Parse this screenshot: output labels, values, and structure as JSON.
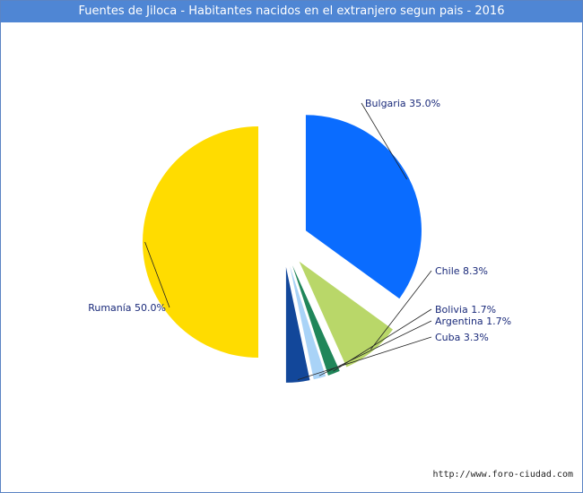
{
  "header": {
    "title": "Fuentes de Jiloca - Habitantes nacidos en el extranjero segun pais - 2016"
  },
  "footer": {
    "credit": "http://www.foro-ciudad.com"
  },
  "chart_data": {
    "type": "pie",
    "title": "Fuentes de Jiloca - Habitantes nacidos en el extranjero segun pais - 2016",
    "legend": "none",
    "slices": [
      {
        "label": "Bulgaria 35.0%",
        "value": 35.0,
        "color": "#0a6cff"
      },
      {
        "label": "Chile 8.3%",
        "value": 8.3,
        "color": "#b9d769"
      },
      {
        "label": "Bolivia 1.7%",
        "value": 1.7,
        "color": "#20865a"
      },
      {
        "label": "Argentina 1.7%",
        "value": 1.7,
        "color": "#a9d3f7"
      },
      {
        "label": "Cuba 3.3%",
        "value": 3.3,
        "color": "#12479a"
      },
      {
        "label": "Rumanía 50.0%",
        "value": 50.0,
        "color": "#ffdc00"
      }
    ]
  }
}
